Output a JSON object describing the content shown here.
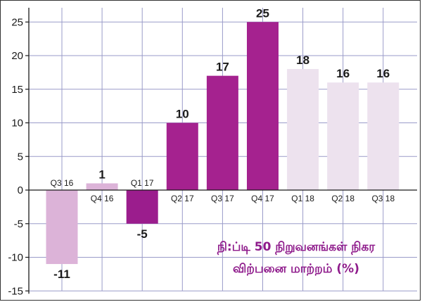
{
  "chart_data": {
    "type": "bar",
    "title_lines": [
      "நி:ப்டி 50 நிறுவனங்கள் நிகர",
      "விற்பனை மாற்றம் (%)"
    ],
    "categories": [
      "Q3 16",
      "Q4 16",
      "Q1 17",
      "Q2 17",
      "Q3 17",
      "Q4 17",
      "Q1 18",
      "Q2 18",
      "Q3 18"
    ],
    "values": [
      -11,
      1,
      -5,
      10,
      17,
      25,
      18,
      16,
      16
    ],
    "colors": [
      "#dcb3d8",
      "#dcb3d8",
      "#9b1d8d",
      "#a5228f",
      "#a5228f",
      "#a5228f",
      "#ede2ee",
      "#ede2ee",
      "#ede2ee"
    ],
    "data_labels": [
      "-11",
      "1",
      "-5",
      "10",
      "17",
      "25",
      "18",
      "16",
      "16"
    ],
    "y_ticks": [
      -15,
      -10,
      -5,
      0,
      5,
      10,
      15,
      20,
      25
    ],
    "y_tick_labels": [
      "-15",
      "-10",
      "-5",
      "0",
      "5",
      "10",
      "15",
      "20",
      "25"
    ],
    "ylim": [
      -15,
      27
    ],
    "grid": true,
    "grid_color": "#9a9bc9",
    "title_color": "#8e1a8b",
    "xlabel": "",
    "ylabel": ""
  }
}
